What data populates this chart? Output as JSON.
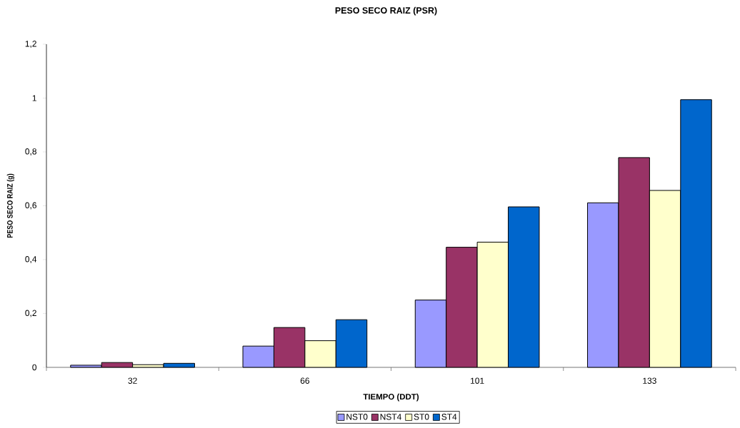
{
  "chart_data": {
    "type": "bar",
    "title": "PESO SECO RAIZ (PSR)",
    "xlabel": "TIEMPO (DDT)",
    "ylabel": "PESO SECO RAIZ (g)",
    "categories": [
      "32",
      "66",
      "101",
      "133"
    ],
    "series": [
      {
        "name": "NST0",
        "color": "#9999ff",
        "values": [
          0.008,
          0.079,
          0.25,
          0.611
        ]
      },
      {
        "name": "NST4",
        "color": "#993366",
        "values": [
          0.018,
          0.148,
          0.446,
          0.779
        ]
      },
      {
        "name": "ST0",
        "color": "#ffffcc",
        "values": [
          0.01,
          0.099,
          0.465,
          0.657
        ]
      },
      {
        "name": "ST4",
        "color": "#0066cc",
        "values": [
          0.015,
          0.177,
          0.596,
          0.994
        ]
      }
    ],
    "ylim": [
      0,
      1.2
    ],
    "yticks": [
      0,
      {
        "value": 0.2,
        "label": "0,2"
      },
      {
        "value": 0.4,
        "label": "0,4"
      },
      {
        "value": 0.6,
        "label": "0,6"
      },
      {
        "value": 0.8,
        "label": "0,8"
      },
      1,
      {
        "value": 1.2,
        "label": "1,2"
      }
    ],
    "legend": "bottom"
  }
}
